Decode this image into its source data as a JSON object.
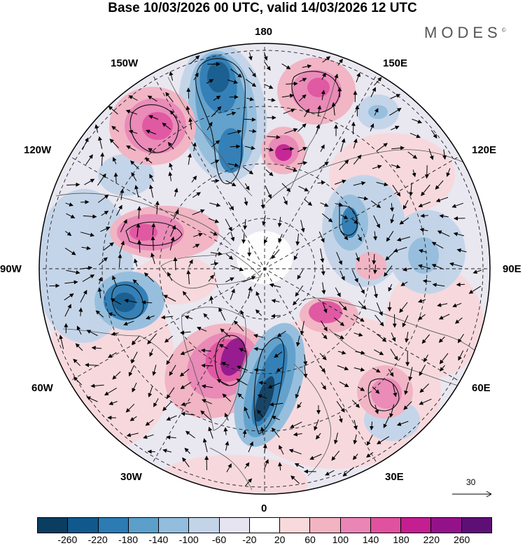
{
  "title": "Base 10/03/2026 00 UTC, valid 14/03/2026 12 UTC",
  "brand": "MODES",
  "brand_mark": "©",
  "longitude_labels": {
    "lon_180": "180",
    "lon_150e": "150E",
    "lon_120e": "120E",
    "lon_90e": "90E",
    "lon_60e": "60E",
    "lon_30e": "30E",
    "lon_0": "0",
    "lon_30w": "30W",
    "lon_60w": "60W",
    "lon_90w": "90W",
    "lon_120w": "120W",
    "lon_150w": "150W"
  },
  "reference_vector": "30",
  "colorbar": {
    "colors": [
      "#0b3d61",
      "#11598c",
      "#2c7bb3",
      "#5c9fcb",
      "#93bddd",
      "#c3d4e8",
      "#e6e4f0",
      "#ffffff",
      "#f8d9dc",
      "#f2b3c2",
      "#ea86b5",
      "#e0529f",
      "#c41e91",
      "#93128a",
      "#5e0f76"
    ],
    "ticks": [
      "-260",
      "-220",
      "-180",
      "-140",
      "-100",
      "-60",
      "-20",
      "20",
      "60",
      "100",
      "140",
      "180",
      "220",
      "260"
    ]
  },
  "anomaly_centers": [
    {
      "name": "neg-pacific-180",
      "value": -240
    },
    {
      "name": "pos-east-siberia",
      "value": 200
    },
    {
      "name": "pos-pacific-150w",
      "value": 160
    },
    {
      "name": "pos-canada-west",
      "value": 150
    },
    {
      "name": "neg-hudson",
      "value": -220
    },
    {
      "name": "pos-greenland",
      "value": 240
    },
    {
      "name": "neg-norwegian-sea",
      "value": -260
    },
    {
      "name": "pos-kara",
      "value": 170
    },
    {
      "name": "pos-central-asia",
      "value": 130
    },
    {
      "name": "neg-siberia",
      "value": -140
    },
    {
      "name": "pos-aleutian-150e",
      "value": 160
    }
  ]
}
